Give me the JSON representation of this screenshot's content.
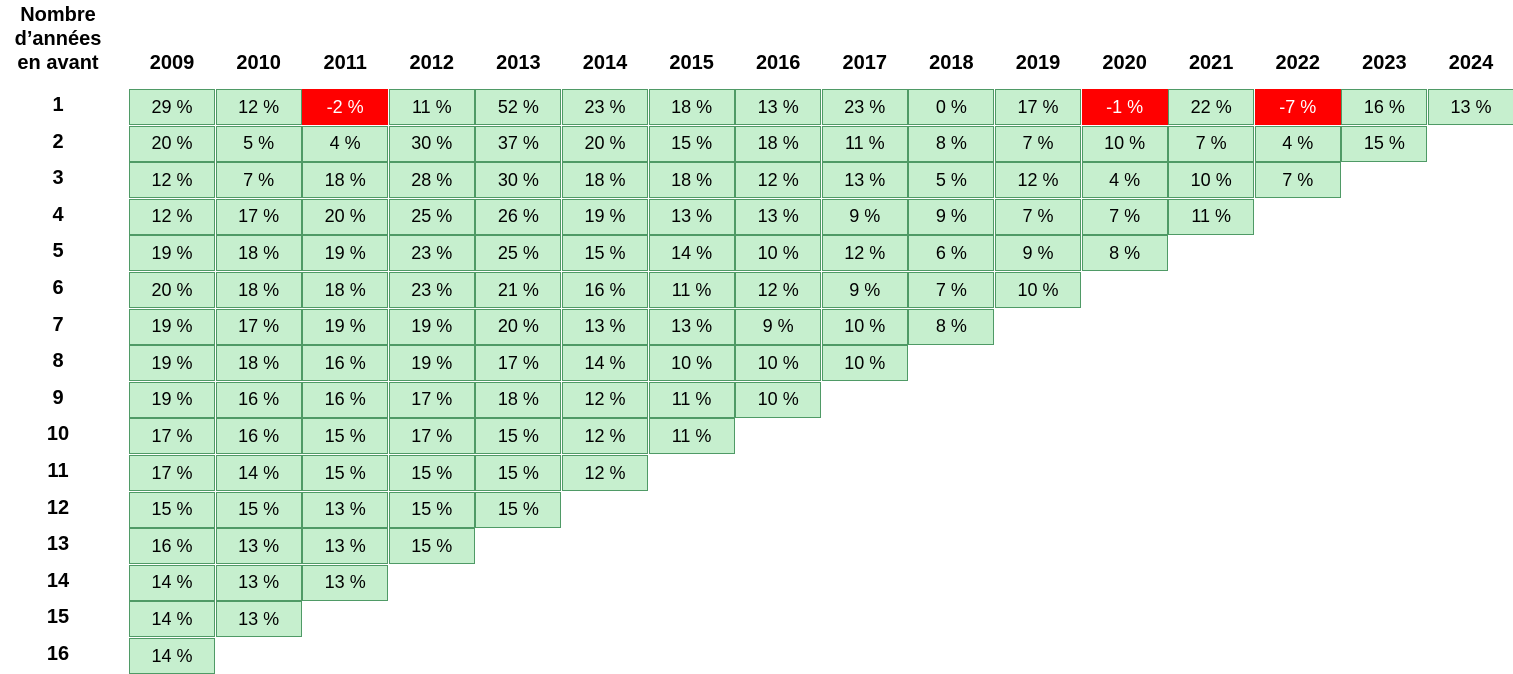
{
  "colors": {
    "positive_fill": "#c6efce",
    "negative_fill": "#ff0000",
    "grid_border": "#4f9a66"
  },
  "row_header_title": "Nombre\nd’années\nen avant",
  "chart_data": {
    "type": "table",
    "column_labels": [
      "2009",
      "2010",
      "2011",
      "2012",
      "2013",
      "2014",
      "2015",
      "2016",
      "2017",
      "2018",
      "2019",
      "2020",
      "2021",
      "2022",
      "2023",
      "2024"
    ],
    "row_labels": [
      "1",
      "2",
      "3",
      "4",
      "5",
      "6",
      "7",
      "8",
      "9",
      "10",
      "11",
      "12",
      "13",
      "14",
      "15",
      "16"
    ],
    "values": [
      [
        "29 %",
        "12 %",
        "-2 %",
        "11 %",
        "52 %",
        "23 %",
        "18 %",
        "13 %",
        "23 %",
        "0 %",
        "17 %",
        "-1 %",
        "22 %",
        "-7 %",
        "16 %",
        "13 %"
      ],
      [
        "20 %",
        "5 %",
        "4 %",
        "30 %",
        "37 %",
        "20 %",
        "15 %",
        "18 %",
        "11 %",
        "8 %",
        "7 %",
        "10 %",
        "7 %",
        "4 %",
        "15 %"
      ],
      [
        "12 %",
        "7 %",
        "18 %",
        "28 %",
        "30 %",
        "18 %",
        "18 %",
        "12 %",
        "13 %",
        "5 %",
        "12 %",
        "4 %",
        "10 %",
        "7 %"
      ],
      [
        "12 %",
        "17 %",
        "20 %",
        "25 %",
        "26 %",
        "19 %",
        "13 %",
        "13 %",
        "9 %",
        "9 %",
        "7 %",
        "7 %",
        "11 %"
      ],
      [
        "19 %",
        "18 %",
        "19 %",
        "23 %",
        "25 %",
        "15 %",
        "14 %",
        "10 %",
        "12 %",
        "6 %",
        "9 %",
        "8 %"
      ],
      [
        "20 %",
        "18 %",
        "18 %",
        "23 %",
        "21 %",
        "16 %",
        "11 %",
        "12 %",
        "9 %",
        "7 %",
        "10 %"
      ],
      [
        "19 %",
        "17 %",
        "19 %",
        "19 %",
        "20 %",
        "13 %",
        "13 %",
        "9 %",
        "10 %",
        "8 %"
      ],
      [
        "19 %",
        "18 %",
        "16 %",
        "19 %",
        "17 %",
        "14 %",
        "10 %",
        "10 %",
        "10 %"
      ],
      [
        "19 %",
        "16 %",
        "16 %",
        "17 %",
        "18 %",
        "12 %",
        "11 %",
        "10 %"
      ],
      [
        "17 %",
        "16 %",
        "15 %",
        "17 %",
        "15 %",
        "12 %",
        "11 %"
      ],
      [
        "17 %",
        "14 %",
        "15 %",
        "15 %",
        "15 %",
        "12 %"
      ],
      [
        "15 %",
        "15 %",
        "13 %",
        "15 %",
        "15 %"
      ],
      [
        "16 %",
        "13 %",
        "13 %",
        "15 %"
      ],
      [
        "14 %",
        "13 %",
        "13 %"
      ],
      [
        "14 %",
        "13 %"
      ],
      [
        "14 %"
      ]
    ]
  }
}
